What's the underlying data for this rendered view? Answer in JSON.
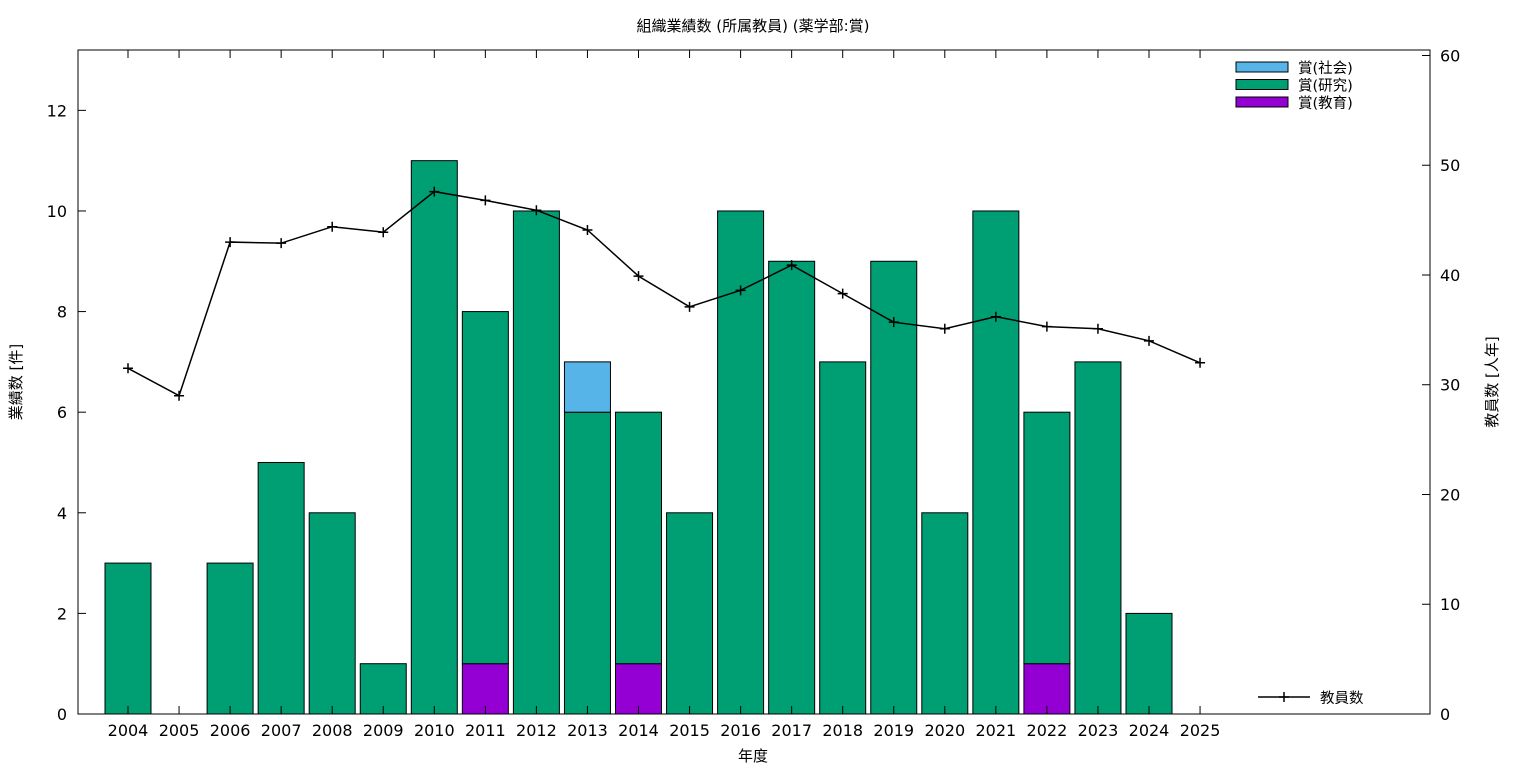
{
  "chart_data": {
    "type": "bar",
    "title": "組織業績数 (所属教員) (薬学部:賞)",
    "xlabel": "年度",
    "ylabel": "業績数 [件]",
    "y2label": "教員数 [人年]",
    "ylim": [
      0,
      13.2
    ],
    "y2lim": [
      0,
      60.5
    ],
    "yticks": [
      0,
      2,
      4,
      6,
      8,
      10,
      12
    ],
    "y2ticks": [
      0,
      10,
      20,
      30,
      40,
      50,
      60
    ],
    "stacked": true,
    "legend_position": "top-right",
    "categories": [
      "2004",
      "2005",
      "2006",
      "2007",
      "2008",
      "2009",
      "2010",
      "2011",
      "2012",
      "2013",
      "2014",
      "2015",
      "2016",
      "2017",
      "2018",
      "2019",
      "2020",
      "2021",
      "2022",
      "2023",
      "2024",
      "2025"
    ],
    "series": [
      {
        "name": "賞(教育)",
        "color": "#9400d3",
        "values": [
          0,
          0,
          0,
          0,
          0,
          0,
          0,
          1,
          0,
          0,
          1,
          0,
          0,
          0,
          0,
          0,
          0,
          0,
          1,
          0,
          0,
          0
        ]
      },
      {
        "name": "賞(研究)",
        "color": "#009e73",
        "values": [
          3,
          0,
          3,
          5,
          4,
          1,
          11,
          7,
          10,
          6,
          5,
          4,
          10,
          9,
          7,
          9,
          4,
          10,
          5,
          7,
          2,
          0
        ]
      },
      {
        "name": "賞(社会)",
        "color": "#56b4e9",
        "values": [
          0,
          0,
          0,
          0,
          0,
          0,
          0,
          0,
          0,
          1,
          0,
          0,
          0,
          0,
          0,
          0,
          0,
          0,
          0,
          0,
          0,
          0
        ]
      }
    ],
    "line": {
      "name": "教員数",
      "color": "#000000",
      "axis": "right",
      "values": [
        31.5,
        29.0,
        43.0,
        42.9,
        44.4,
        43.9,
        47.6,
        46.8,
        45.9,
        44.1,
        39.9,
        37.1,
        38.6,
        40.9,
        38.3,
        35.7,
        35.1,
        36.2,
        35.3,
        35.1,
        34.0,
        32.0
      ]
    }
  }
}
